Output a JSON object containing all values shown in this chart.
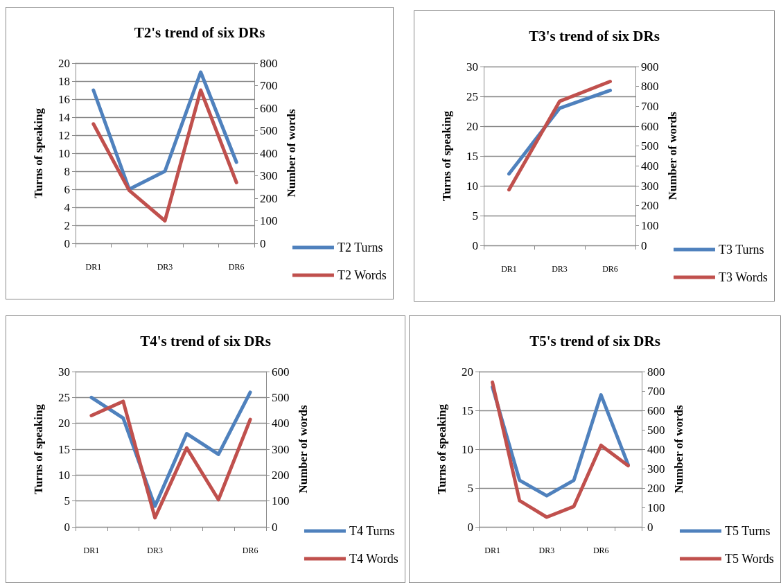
{
  "chart_data": [
    {
      "type": "line",
      "title": "T2's trend of six DRs",
      "ylabel": "Turns of speaking",
      "y2label": "Number of words",
      "categories": [
        "DR1",
        null,
        "DR3",
        null,
        "DR6"
      ],
      "ylim": [
        0,
        20
      ],
      "yticks": [
        0,
        2,
        4,
        6,
        8,
        10,
        12,
        14,
        16,
        18,
        20
      ],
      "y2lim": [
        0,
        800
      ],
      "y2ticks": [
        0,
        100,
        200,
        300,
        400,
        500,
        600,
        700,
        800
      ],
      "grid": "y",
      "legend": "right",
      "marker": "none",
      "line_style": "solid",
      "series": [
        {
          "name": "T2 Turns",
          "color": "#4f81bd",
          "values": [
            17,
            6,
            8,
            19,
            9
          ]
        },
        {
          "name": "T2 Words",
          "color": "#c0504d",
          "axis": "y2",
          "values": [
            530,
            235,
            100,
            680,
            270
          ]
        }
      ]
    },
    {
      "type": "line",
      "title": "T3's trend of six DRs",
      "ylabel": "Turns of speaking",
      "y2label": "Number of words",
      "categories": [
        "DR1",
        "DR3",
        "DR6"
      ],
      "ylim": [
        0,
        30
      ],
      "yticks": [
        0,
        5,
        10,
        15,
        20,
        25,
        30
      ],
      "y2lim": [
        0,
        900
      ],
      "y2ticks": [
        0,
        100,
        200,
        300,
        400,
        500,
        600,
        700,
        800,
        900
      ],
      "grid": "y",
      "legend": "right",
      "marker": "none",
      "line_style": "solid",
      "series": [
        {
          "name": "T3 Turns",
          "color": "#4f81bd",
          "values": [
            12,
            23,
            26
          ]
        },
        {
          "name": "T3 Words",
          "color": "#c0504d",
          "axis": "y2",
          "values": [
            280,
            725,
            825
          ]
        }
      ]
    },
    {
      "type": "line",
      "title": "T4's trend of six DRs",
      "ylabel": "Turns of speaking",
      "y2label": "Number of words",
      "categories": [
        "DR1",
        null,
        "DR3",
        null,
        null,
        "DR6"
      ],
      "ylim": [
        0,
        30
      ],
      "yticks": [
        0,
        5,
        10,
        15,
        20,
        25,
        30
      ],
      "y2lim": [
        0,
        600
      ],
      "y2ticks": [
        0,
        100,
        200,
        300,
        400,
        500,
        600
      ],
      "grid": "y",
      "legend": "right",
      "marker": "none",
      "line_style": "solid",
      "series": [
        {
          "name": "T4 Turns",
          "color": "#4f81bd",
          "values": [
            25,
            21,
            4,
            18,
            14,
            26
          ]
        },
        {
          "name": "T4 Words",
          "color": "#c0504d",
          "axis": "y2",
          "values": [
            430,
            485,
            35,
            305,
            105,
            415
          ]
        }
      ]
    },
    {
      "type": "line",
      "title": "T5's trend of six DRs",
      "ylabel": "Turns of speaking",
      "y2label": "Number of words",
      "categories": [
        "DR1",
        null,
        "DR3",
        null,
        "DR6",
        null
      ],
      "ylim": [
        0,
        20
      ],
      "yticks": [
        0,
        5,
        10,
        15,
        20
      ],
      "y2lim": [
        0,
        800
      ],
      "y2ticks": [
        0,
        100,
        200,
        300,
        400,
        500,
        600,
        700,
        800
      ],
      "grid": "y",
      "legend": "right",
      "marker": "none",
      "line_style": "solid",
      "series": [
        {
          "name": "T5 Turns",
          "color": "#4f81bd",
          "values": [
            18,
            6,
            4,
            6,
            17,
            8
          ]
        },
        {
          "name": "T5 Words",
          "color": "#c0504d",
          "axis": "y2",
          "values": [
            745,
            135,
            50,
            105,
            420,
            315
          ]
        }
      ]
    }
  ]
}
